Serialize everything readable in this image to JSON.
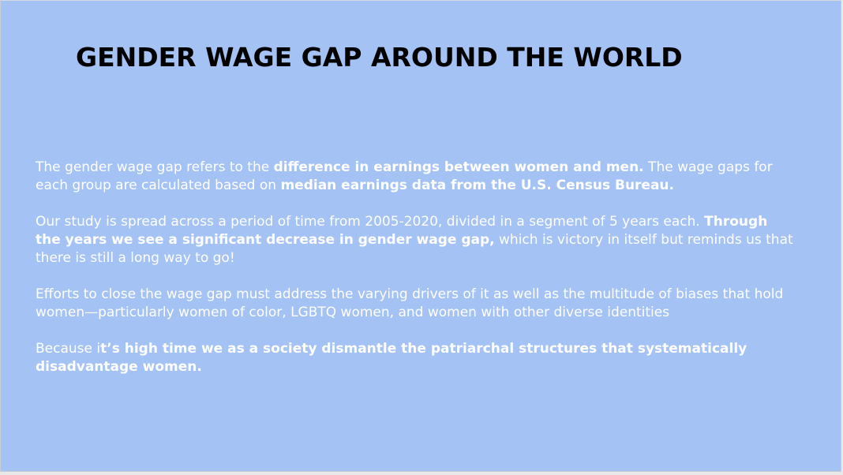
{
  "slide": {
    "title": "GENDER WAGE GAP AROUND THE WORLD",
    "background_color": "#a4c2f4",
    "text_color": "#ffffff",
    "paragraphs": [
      {
        "runs": [
          {
            "text": "The gender wage gap refers to the ",
            "bold": false
          },
          {
            "text": "difference in earnings between women and men.",
            "bold": true
          },
          {
            "text": " The wage gaps for each group are calculated based on ",
            "bold": false
          },
          {
            "text": "median earnings data from the U.S. Census Bureau.",
            "bold": true
          }
        ]
      },
      {
        "runs": [
          {
            "text": "Our study is spread across a period of time from 2005-2020, divided in a segment of 5 years each. ",
            "bold": false
          },
          {
            "text": "Through the years we see a significant decrease in gender wage gap,",
            "bold": true
          },
          {
            "text": " which is victory in itself but reminds us that there is still a long way to go!",
            "bold": false
          }
        ]
      },
      {
        "runs": [
          {
            "text": "Efforts to close the wage gap must address the varying drivers of it as well as the multitude of biases that hold women—particularly women of color, LGBTQ women, and women with other diverse identities",
            "bold": false
          }
        ]
      },
      {
        "runs": [
          {
            "text": "Because i",
            "bold": false
          },
          {
            "text": "t’s high time we as a society dismantle the patriarchal structures that systematically disadvantage women.",
            "bold": true
          }
        ]
      }
    ]
  }
}
